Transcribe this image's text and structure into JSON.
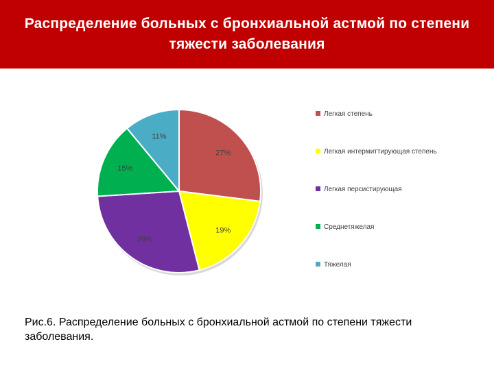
{
  "header": {
    "title": "Распределение больных с бронхиальной астмой по степени тяжести заболевания"
  },
  "caption": "Рис.6. Распределение больных с бронхиальной астмой по степени тяжести заболевания.",
  "chart_data": {
    "type": "pie",
    "title": "",
    "legend_position": "right",
    "categories": [
      "Легкая степень",
      "Легкая интермиттирующая степень",
      "Легкая персистирующая",
      "Среднетяжелая",
      "Тяжелая"
    ],
    "values": [
      27,
      19,
      28,
      15,
      11
    ],
    "labels": [
      "27%",
      "19%",
      "28%",
      "15%",
      "11%"
    ],
    "colors": [
      "#c0504d",
      "#ffff00",
      "#7030a0",
      "#00b050",
      "#4bacc6"
    ]
  }
}
